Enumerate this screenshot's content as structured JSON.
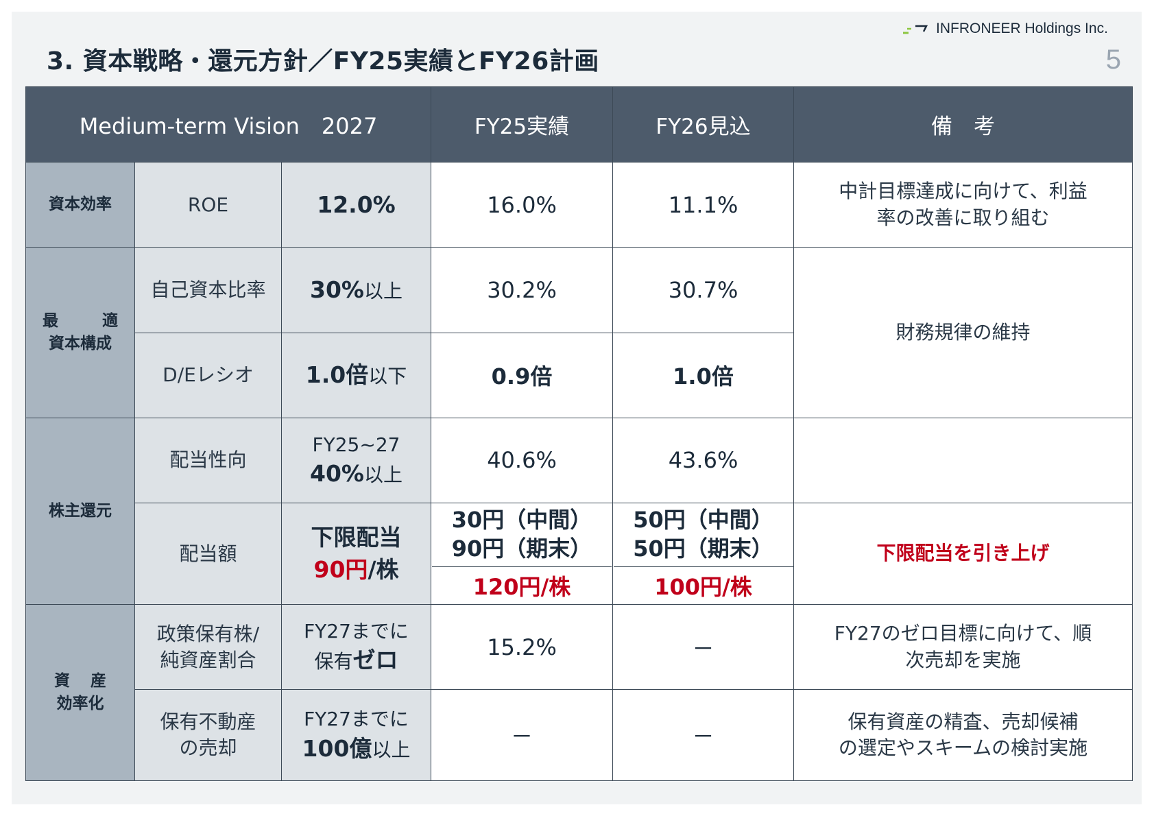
{
  "header": {
    "title": "3. 資本戦略・還元方針／FY25実績とFY26計画",
    "company": "INFRONEER Holdings Inc.",
    "page_number": "5",
    "colors": {
      "header_bg": "#4d5b6b",
      "category_bg": "#a9b5c0",
      "item_bg": "#dde2e6",
      "accent_red": "#c0001a",
      "logo_green": "#8cc63f"
    }
  },
  "table": {
    "columns": {
      "vision": "Medium-term Vision　2027",
      "fy25": "FY25実績",
      "fy26": "FY26見込",
      "notes": "備　考"
    },
    "rows": {
      "roe": {
        "category": "資本効率",
        "item": "ROE",
        "target": "12.0%",
        "fy25": "16.0%",
        "fy26": "11.1%",
        "note_line1": "中計目標達成に向けて、利益",
        "note_line2": "率の改善に取り組む"
      },
      "equity_ratio": {
        "category_line1_a": "最",
        "category_line1_b": "適",
        "category_line2": "資本構成",
        "item": "自己資本比率",
        "target_value": "30%",
        "target_suffix": "以上",
        "fy25": "30.2%",
        "fy26": "30.7%",
        "note": "財務規律の維持"
      },
      "de_ratio": {
        "item": "D/Eレシオ",
        "target_value": "1.0倍",
        "target_suffix": "以下",
        "fy25": "0.9倍",
        "fy26": "1.0倍"
      },
      "payout": {
        "category": "株主還元",
        "item": "配当性向",
        "target_line1": "FY25~27",
        "target_value": "40%",
        "target_suffix": "以上",
        "fy25": "40.6%",
        "fy26": "43.6%",
        "note": ""
      },
      "dividend": {
        "item": "配当額",
        "target_line1": "下限配当",
        "target_value": "90円",
        "target_unit": "/株",
        "fy25_interim": "30円（中間）",
        "fy25_final": "90円（期末）",
        "fy25_total_value": "120円",
        "fy25_total_unit": "/株",
        "fy26_interim": "50円（中間）",
        "fy26_final": "50円（期末）",
        "fy26_total_value": "100円",
        "fy26_total_unit": "/株",
        "note": "下限配当を引き上げ"
      },
      "cross_shareholdings": {
        "category_line1_a": "資",
        "category_line1_b": "産",
        "category_line2": "効率化",
        "item_line1": "政策保有株/",
        "item_line2": "純資産割合",
        "target_line1": "FY27までに",
        "target_prefix": "保有",
        "target_value": "ゼロ",
        "fy25": "15.2%",
        "fy26": "－",
        "note_line1": "FY27のゼロ目標に向けて、順",
        "note_line2": "次売却を実施"
      },
      "real_estate": {
        "item_line1": "保有不動産",
        "item_line2": "の売却",
        "target_line1": "FY27までに",
        "target_value": "100億",
        "target_suffix": "以上",
        "fy25": "－",
        "fy26": "－",
        "note_line1": "保有資産の精査、売却候補",
        "note_line2": "の選定やスキームの検討実施"
      }
    }
  }
}
